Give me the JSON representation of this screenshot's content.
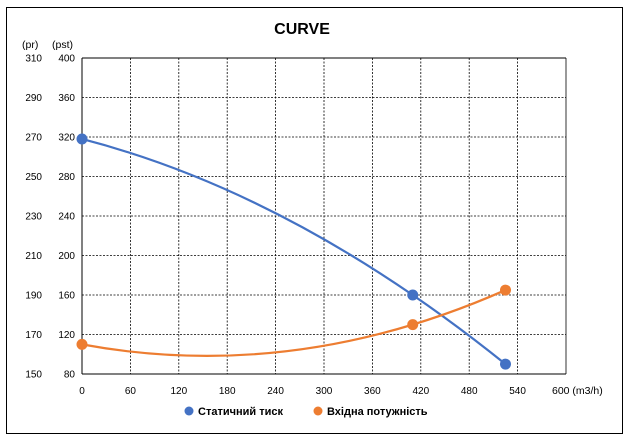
{
  "chart_data": {
    "type": "line",
    "title": "CURVE",
    "x_unit": "600 (m3/h)",
    "left_unit": "(pr)",
    "right_unit": "(pst)",
    "x_ticks": [
      "0",
      "60",
      "120",
      "180",
      "240",
      "300",
      "360",
      "420",
      "480",
      "540"
    ],
    "y_left_ticks": [
      "310",
      "290",
      "270",
      "250",
      "230",
      "210",
      "190",
      "170",
      "150"
    ],
    "y_right_ticks": [
      "400",
      "360",
      "320",
      "280",
      "240",
      "200",
      "160",
      "120",
      "80"
    ],
    "xlim": [
      0,
      600
    ],
    "ylim_left": [
      150,
      310
    ],
    "ylim_right": [
      80,
      400
    ],
    "grid": true,
    "legend_position": "bottom",
    "series": [
      {
        "name": "Статичний тиск",
        "color": "#4472C4",
        "axis": "left",
        "x": [
          0,
          410,
          525
        ],
        "y": [
          269,
          190,
          155
        ]
      },
      {
        "name": "Вхідна потужність",
        "color": "#ED7D31",
        "axis": "right",
        "x": [
          0,
          410,
          525
        ],
        "y": [
          110,
          130,
          165
        ]
      }
    ]
  }
}
